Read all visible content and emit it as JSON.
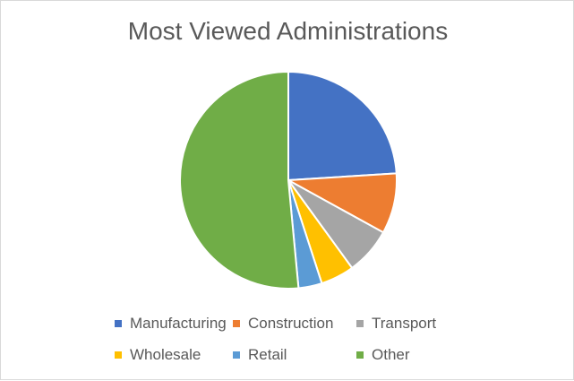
{
  "chart_data": {
    "type": "pie",
    "title": "Most Viewed Administrations",
    "categories": [
      "Manufacturing",
      "Construction",
      "Transport",
      "Wholesale",
      "Retail",
      "Other"
    ],
    "values": [
      24.0,
      9.0,
      7.0,
      5.0,
      3.5,
      51.5
    ],
    "colors": [
      "#4472C4",
      "#ED7D31",
      "#A5A5A5",
      "#FFC000",
      "#5B9BD5",
      "#70AD47"
    ],
    "legend_position": "bottom"
  }
}
